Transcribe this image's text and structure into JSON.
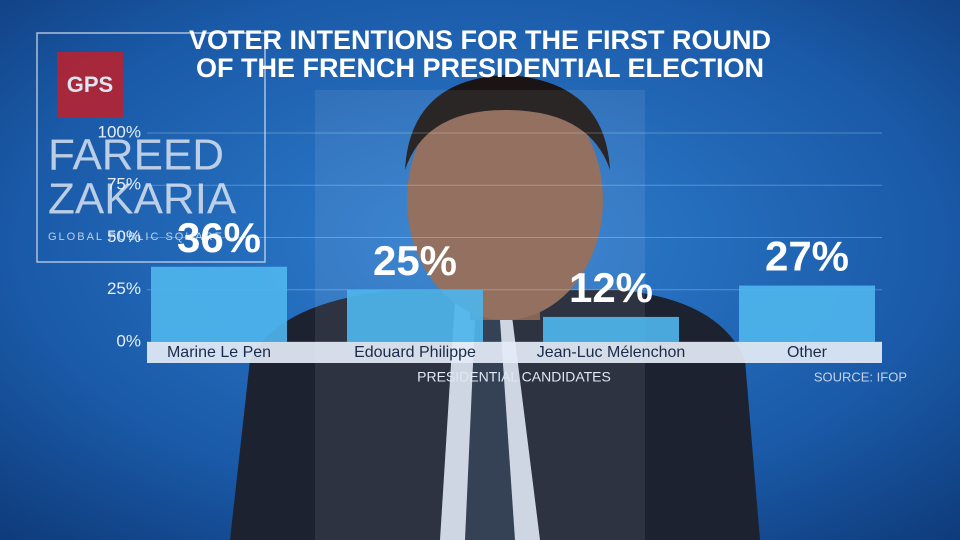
{
  "logo": {
    "badge": "GPS",
    "name_lines": [
      "FAREED",
      "ZAKARIA"
    ],
    "tagline": "GLOBAL PUBLIC SQUARE"
  },
  "chart_data": {
    "type": "bar",
    "title": [
      "VOTER INTENTIONS FOR THE FIRST ROUND",
      "OF THE FRENCH PRESIDENTIAL ELECTION"
    ],
    "categories": [
      "Marine Le Pen",
      "Edouard Philippe",
      "Jean-Luc Mélenchon",
      "Other"
    ],
    "values": [
      36,
      25,
      12,
      27
    ],
    "value_labels": [
      "36%",
      "25%",
      "12%",
      "27%"
    ],
    "color": "#4eb4ec",
    "ylim": [
      0,
      100
    ],
    "yticks": [
      {
        "value": 0,
        "label": "0%"
      },
      {
        "value": 25,
        "label": "25%"
      },
      {
        "value": 50,
        "label": "50%"
      },
      {
        "value": 75,
        "label": "75%"
      },
      {
        "value": 100,
        "label": "100%"
      }
    ],
    "grid": true,
    "xlabel": "PRESIDENTIAL CANDIDATES",
    "source": "SOURCE: IFOP"
  }
}
